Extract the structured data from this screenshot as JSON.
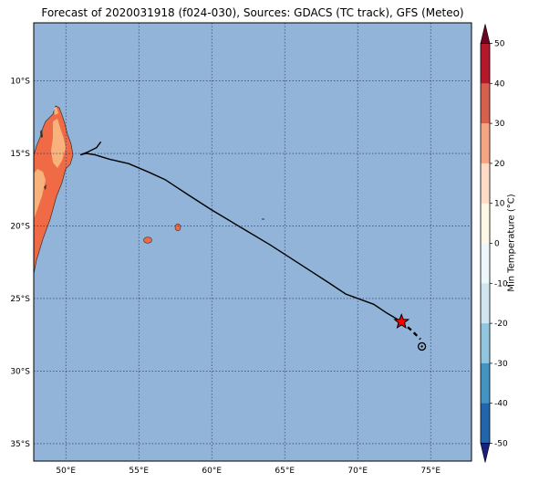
{
  "title": "Forecast of 2020031918 (f024-030), Sources: GDACS (TC track), GFS (Meteo)",
  "map": {
    "lon_range": [
      47.8,
      77.8
    ],
    "lat_range": [
      -36.2,
      -6.0
    ],
    "lon_ticks": [
      {
        "value": 50,
        "label": "50°E"
      },
      {
        "value": 55,
        "label": "55°E"
      },
      {
        "value": 60,
        "label": "60°E"
      },
      {
        "value": 65,
        "label": "65°E"
      },
      {
        "value": 70,
        "label": "70°E"
      },
      {
        "value": 75,
        "label": "75°E"
      }
    ],
    "lat_ticks": [
      {
        "value": -10,
        "label": "10°S"
      },
      {
        "value": -15,
        "label": "15°S"
      },
      {
        "value": -20,
        "label": "20°S"
      },
      {
        "value": -25,
        "label": "25°S"
      },
      {
        "value": -30,
        "label": "30°S"
      },
      {
        "value": -35,
        "label": "35°S"
      }
    ],
    "ocean_color": "#92b4d9",
    "grid": true,
    "track": {
      "past": [
        [
          51.0,
          -15.1
        ],
        [
          51.4,
          -15.0
        ],
        [
          52.0,
          -15.1
        ],
        [
          53.0,
          -15.4
        ],
        [
          54.3,
          -15.7
        ],
        [
          55.7,
          -16.3
        ],
        [
          56.8,
          -16.8
        ],
        [
          58.3,
          -17.8
        ],
        [
          60.0,
          -18.9
        ],
        [
          62.0,
          -20.1
        ],
        [
          64.0,
          -21.3
        ],
        [
          66.0,
          -22.6
        ],
        [
          68.0,
          -23.9
        ],
        [
          69.2,
          -24.7
        ],
        [
          71.1,
          -25.4
        ],
        [
          72.0,
          -26.0
        ],
        [
          73.0,
          -26.6
        ]
      ],
      "early": [
        [
          51.0,
          -15.1
        ],
        [
          51.5,
          -14.9
        ],
        [
          52.1,
          -14.6
        ],
        [
          52.4,
          -14.2
        ]
      ],
      "forecast": [
        [
          73.0,
          -26.6
        ],
        [
          73.7,
          -27.2
        ],
        [
          74.3,
          -27.8
        ]
      ],
      "current_position": [
        73.0,
        -26.6
      ],
      "forecast_position": [
        74.4,
        -28.3
      ],
      "track_color": "#000000",
      "star_color": "#ff0000"
    }
  },
  "colorbar": {
    "label": "Min Temperature (°C)",
    "ticks": [
      50,
      40,
      30,
      20,
      10,
      0,
      -10,
      -20,
      -30,
      -40,
      -50
    ],
    "colors": [
      "#6e0523",
      "#b3182b",
      "#d6604d",
      "#f4a582",
      "#fddbc7",
      "#fef7e6",
      "#ecf6fb",
      "#d1e5f0",
      "#92c5de",
      "#4393c3",
      "#2166ac",
      "#1c1f7b"
    ],
    "colors_note": "bands from top (>50) to bottom (<-50)"
  }
}
